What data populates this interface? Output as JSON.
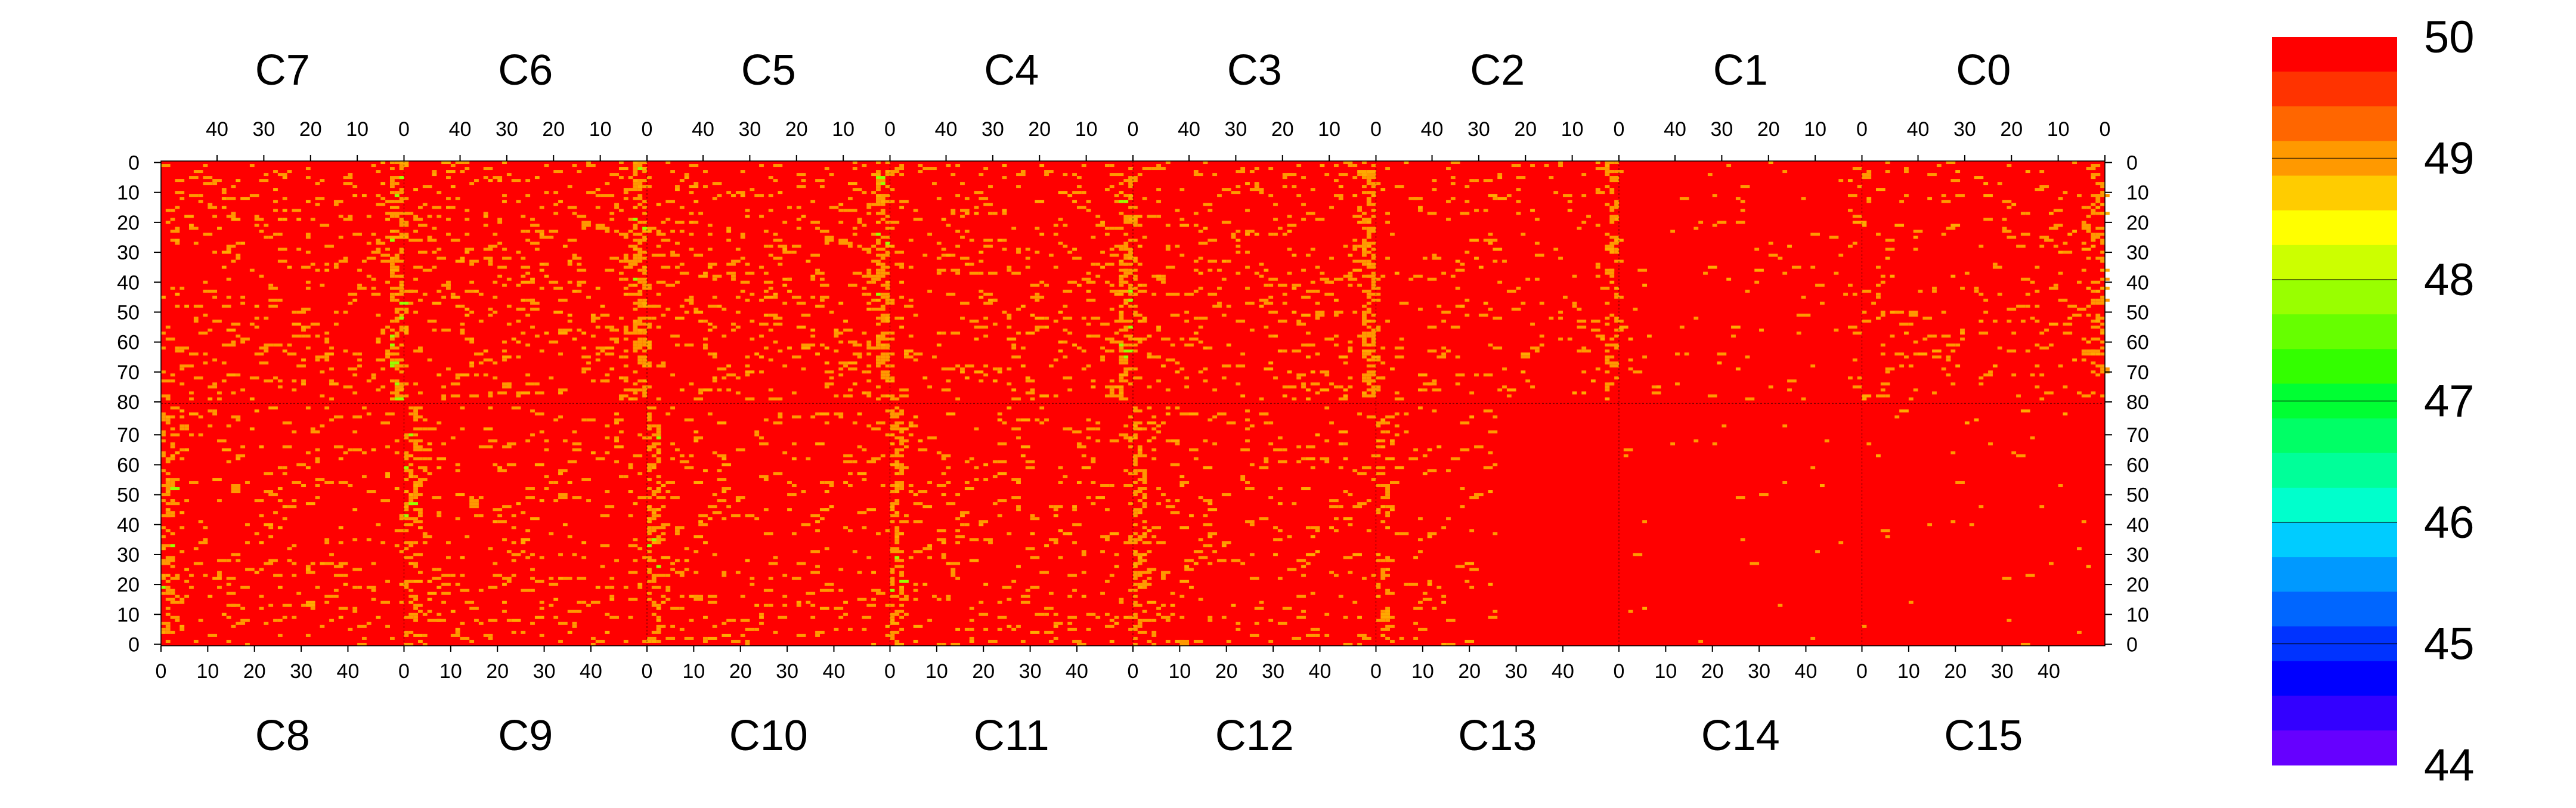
{
  "chart_data": {
    "type": "heatmap",
    "title": "",
    "xlabel": "",
    "ylabel": "",
    "chips_top": [
      "C7",
      "C6",
      "C5",
      "C4",
      "C3",
      "C2",
      "C1",
      "C0"
    ],
    "chips_bottom": [
      "C8",
      "C9",
      "C10",
      "C11",
      "C12",
      "C13",
      "C14",
      "C15"
    ],
    "columns_per_chip": 52,
    "rows_per_half": 80,
    "top_x_ticks": [
      "40",
      "30",
      "20",
      "10",
      "0"
    ],
    "bottom_x_ticks": [
      "0",
      "10",
      "20",
      "30",
      "40"
    ],
    "top_y_ticks": [
      "0",
      "10",
      "20",
      "30",
      "40",
      "50",
      "60",
      "70",
      "80"
    ],
    "bottom_y_ticks": [
      "70",
      "60",
      "50",
      "40",
      "30",
      "20",
      "10",
      "0"
    ],
    "zlim": [
      44,
      50
    ],
    "colorbar": {
      "tick_labels": [
        "50",
        "49",
        "48",
        "47",
        "46",
        "45",
        "44"
      ],
      "band_colors": [
        "#ff0000",
        "#ff3300",
        "#ff6600",
        "#ff9900",
        "#ffcc00",
        "#ffff00",
        "#ccff00",
        "#99ff00",
        "#66ff00",
        "#33ff00",
        "#00ff33",
        "#00ff66",
        "#00ff99",
        "#00ffcc",
        "#00ccff",
        "#0099ff",
        "#0066ff",
        "#0033ff",
        "#0000ff",
        "#3300ff",
        "#6600ff"
      ]
    },
    "dominant_value": 50,
    "typical_secondary_value": 49,
    "occasional_low_value": 48,
    "value_distribution": {
      "C7": "mostly 50, scattered 49 pixels, densest near column 0",
      "C6": "mostly 50, scattered 49 pixels, a column of 48 near column 0",
      "C5": "mostly 50, scattered 49 pixels, a column of 48 near column 0",
      "C4": "mostly 50, scattered 49 pixels",
      "C3": "mostly 50, scattered 49 pixels",
      "C2": "mostly 50, sparse 49 pixels",
      "C1": "almost uniformly 50, very sparse 49 pixels",
      "C0": "mostly 50, scattered 49 pixels near column 0",
      "C8": "mostly 50, scattered 49 pixels",
      "C9": "mostly 50, scattered 49 pixels",
      "C10": "mostly 50, scattered 49 pixels",
      "C11": "mostly 50, scattered 49 pixels, denser near column 0",
      "C12": "mostly 50, scattered 49 pixels",
      "C13": "mostly 50, 49 pixels only in columns 0-25, uniform 50 beyond",
      "C14": "almost uniformly 50",
      "C15": "almost uniformly 50, very sparse 49 pixels"
    }
  }
}
